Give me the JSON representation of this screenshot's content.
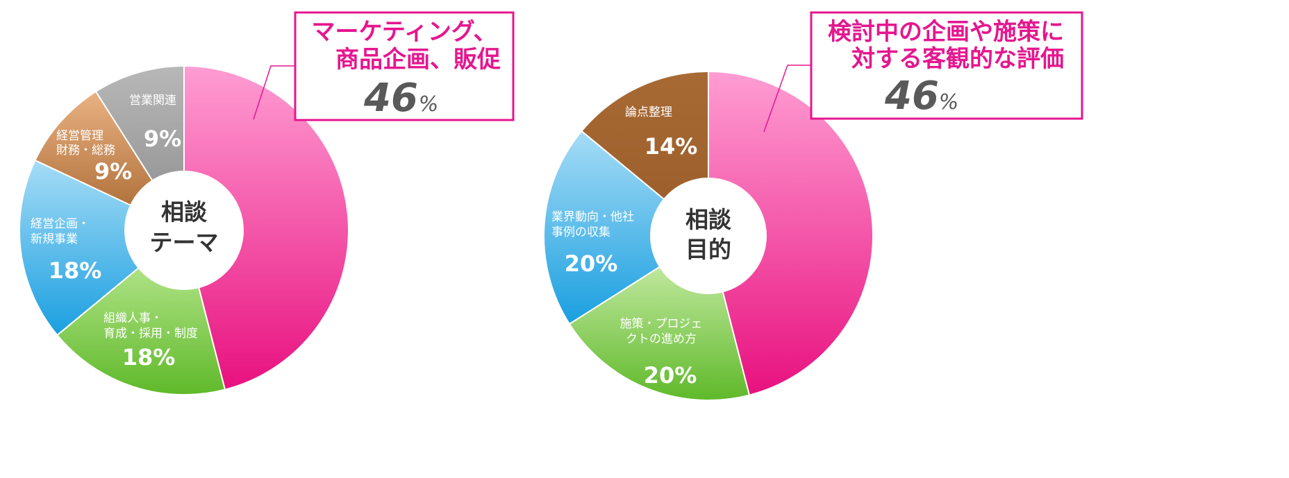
{
  "chart_data": [
    {
      "type": "pie",
      "center_label": [
        "相談",
        "テーマ"
      ],
      "callout": {
        "title": [
          "マーケティング、",
          "商品企画、販促"
        ],
        "value": "46",
        "unit": "%"
      },
      "slices": [
        {
          "label": [
            "マーケティング、",
            "商品企画、販促"
          ],
          "value": 46,
          "value_text": "46%",
          "color_top": "#ff9dd3",
          "color_bottom": "#e8117f"
        },
        {
          "label": [
            "組織人事・",
            "育成・採用・制度"
          ],
          "value": 18,
          "value_text": "18%",
          "color_top": "#c6eea0",
          "color_bottom": "#5fb92a"
        },
        {
          "label": [
            "経営企画・",
            "新規事業"
          ],
          "value": 18,
          "value_text": "18%",
          "color_top": "#a6dcf6",
          "color_bottom": "#1a9fe0"
        },
        {
          "label": [
            "経営管理",
            "財務・総務"
          ],
          "value": 9,
          "value_text": "9%",
          "color_top": "#e9b182",
          "color_bottom": "#a6662f"
        },
        {
          "label": [
            "営業関連"
          ],
          "value": 9,
          "value_text": "9%",
          "color_top": "#b8b8b8",
          "color_bottom": "#8c8c8c"
        }
      ]
    },
    {
      "type": "pie",
      "center_label": [
        "相談",
        "目的"
      ],
      "callout": {
        "title": [
          "検討中の企画や施策に",
          "対する客観的な評価"
        ],
        "value": "46",
        "unit": "%"
      },
      "slices": [
        {
          "label": [
            "検討中の企画や施策に",
            "対する客観的な評価"
          ],
          "value": 46,
          "value_text": "46%",
          "color_top": "#ff9dd3",
          "color_bottom": "#e8117f"
        },
        {
          "label": [
            "施策・プロジェ",
            "クトの進め方"
          ],
          "value": 20,
          "value_text": "20%",
          "color_top": "#d6f2b8",
          "color_bottom": "#5fb92a"
        },
        {
          "label": [
            "業界動向・他社",
            "事例の収集"
          ],
          "value": 20,
          "value_text": "20%",
          "color_top": "#a6dcf6",
          "color_bottom": "#1a9fe0"
        },
        {
          "label": [
            "論点整理"
          ],
          "value": 14,
          "value_text": "14%",
          "color_top": "#a86a34",
          "color_bottom": "#9a5d2a"
        }
      ]
    }
  ],
  "colors": {
    "accent": "#e5168f",
    "callout_border": "#e5168f",
    "center_fill": "#ffffff",
    "divider": "#ffffff"
  }
}
